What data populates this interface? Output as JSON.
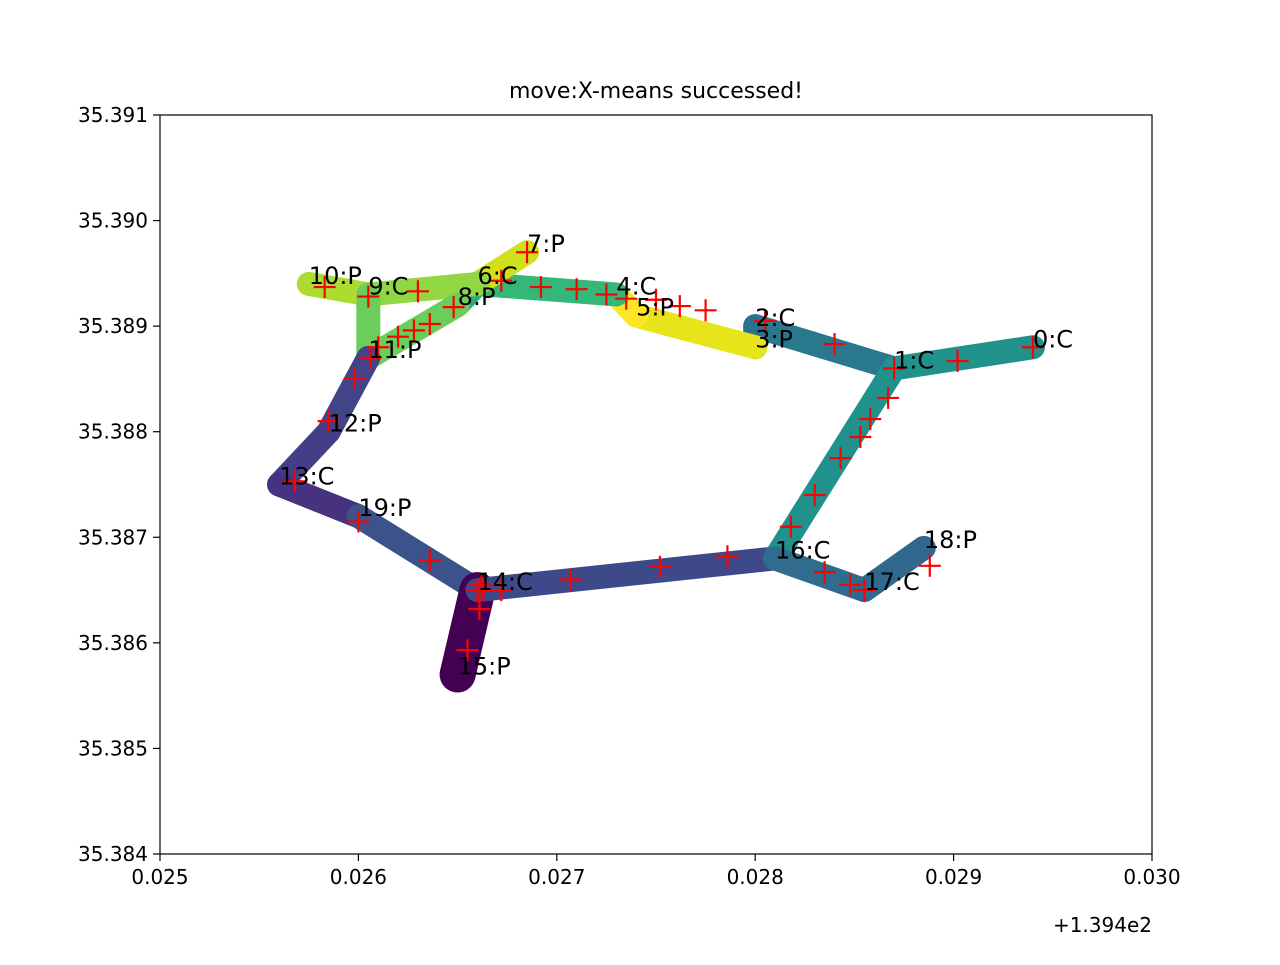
{
  "chart_data": {
    "type": "scatter",
    "title": "move:X-means successed!",
    "xlabel": "",
    "ylabel": "",
    "x_offset_label": "+1.394e2",
    "xlim": [
      0.025,
      0.03
    ],
    "ylim": [
      35.384,
      35.391
    ],
    "x_ticks": [
      0.025,
      0.026,
      0.027,
      0.028,
      0.029,
      0.03
    ],
    "x_tick_labels": [
      "0.025",
      "0.026",
      "0.027",
      "0.028",
      "0.029",
      "0.030"
    ],
    "y_ticks": [
      35.384,
      35.385,
      35.386,
      35.387,
      35.388,
      35.389,
      35.39,
      35.391
    ],
    "y_tick_labels": [
      "35.384",
      "35.385",
      "35.386",
      "35.387",
      "35.388",
      "35.389",
      "35.390",
      "35.391"
    ],
    "grid": false,
    "marker_color": "#ff0000",
    "clusters": [
      {
        "label": "0:C",
        "x": 0.0294,
        "y": 35.3888,
        "color": "#2c7e8e"
      },
      {
        "label": "1:C",
        "x": 0.0287,
        "y": 35.3886,
        "color": "#21918c"
      },
      {
        "label": "2:C",
        "x": 0.028,
        "y": 35.389,
        "color": "#2a788e"
      },
      {
        "label": "3:P",
        "x": 0.028,
        "y": 35.3888,
        "color": "#2c728e"
      },
      {
        "label": "4:C",
        "x": 0.0273,
        "y": 35.3893,
        "color": "#fde725"
      },
      {
        "label": "5:P",
        "x": 0.0274,
        "y": 35.3891,
        "color": "#e7e419"
      },
      {
        "label": "6:C",
        "x": 0.0266,
        "y": 35.3894,
        "color": "#35b779"
      },
      {
        "label": "7:P",
        "x": 0.02685,
        "y": 35.3897,
        "color": "#d0e11c"
      },
      {
        "label": "8:P",
        "x": 0.0265,
        "y": 35.3892,
        "color": "#28ae80"
      },
      {
        "label": "9:C",
        "x": 0.02605,
        "y": 35.3893,
        "color": "#90d743"
      },
      {
        "label": "10:P",
        "x": 0.02575,
        "y": 35.3894,
        "color": "#addc30"
      },
      {
        "label": "11:P",
        "x": 0.02605,
        "y": 35.3887,
        "color": "#6ccd5a"
      },
      {
        "label": "12:P",
        "x": 0.02585,
        "y": 35.388,
        "color": "#414487"
      },
      {
        "label": "13:C",
        "x": 0.0256,
        "y": 35.3875,
        "color": "#433e85"
      },
      {
        "label": "14:C",
        "x": 0.0266,
        "y": 35.3865,
        "color": "#3b528b"
      },
      {
        "label": "15:P",
        "x": 0.0265,
        "y": 35.3857,
        "color": "#440154"
      },
      {
        "label": "16:C",
        "x": 0.0281,
        "y": 35.3868,
        "color": "#3e4989"
      },
      {
        "label": "17:C",
        "x": 0.02855,
        "y": 35.3865,
        "color": "#2f6c8e"
      },
      {
        "label": "18:P",
        "x": 0.02885,
        "y": 35.3869,
        "color": "#31688e"
      },
      {
        "label": "19:P",
        "x": 0.026,
        "y": 35.3872,
        "color": "#46327e"
      }
    ],
    "points": [
      {
        "label": "0:C",
        "x": 0.0294,
        "y": 35.3888
      },
      {
        "label": "1:C",
        "x": 0.0287,
        "y": 35.3886
      },
      {
        "label": "2:C",
        "x": 0.02805,
        "y": 35.38905
      },
      {
        "label": "3:P",
        "x": 0.02775,
        "y": 35.38915
      },
      {
        "label": "4:C",
        "x": 0.02725,
        "y": 35.3893
      },
      {
        "label": "5:P",
        "x": 0.0275,
        "y": 35.38925
      },
      {
        "label": "6:C",
        "x": 0.02672,
        "y": 35.38943
      },
      {
        "label": "7:P",
        "x": 0.02685,
        "y": 35.3897
      },
      {
        "label": "8:P",
        "x": 0.02648,
        "y": 35.38918
      },
      {
        "label": "9:C",
        "x": 0.02605,
        "y": 35.38928
      },
      {
        "label": "10:P",
        "x": 0.02583,
        "y": 35.38937
      },
      {
        "label": "11:P",
        "x": 0.02606,
        "y": 35.3887
      },
      {
        "label": "12:P",
        "x": 0.02585,
        "y": 35.3881
      },
      {
        "label": "13:C",
        "x": 0.02568,
        "y": 35.38753
      },
      {
        "label": "14:C",
        "x": 0.0266,
        "y": 35.3865
      },
      {
        "label": "15:P",
        "x": 0.02655,
        "y": 35.38593
      },
      {
        "label": "16:C",
        "x": 0.02818,
        "y": 35.3871
      },
      {
        "label": "17:C",
        "x": 0.02855,
        "y": 35.3865
      },
      {
        "label": "18:P",
        "x": 0.02888,
        "y": 35.38673
      },
      {
        "label": "19:P",
        "x": 0.026,
        "y": 35.38715
      },
      {
        "x": 0.02902,
        "y": 35.38867
      },
      {
        "x": 0.0284,
        "y": 35.38883
      },
      {
        "x": 0.02762,
        "y": 35.38919
      },
      {
        "x": 0.02735,
        "y": 35.38926
      },
      {
        "x": 0.0271,
        "y": 35.38935
      },
      {
        "x": 0.02692,
        "y": 35.38937
      },
      {
        "x": 0.0263,
        "y": 35.38933
      },
      {
        "x": 0.02598,
        "y": 35.3885
      },
      {
        "x": 0.0261,
        "y": 35.3888
      },
      {
        "x": 0.0262,
        "y": 35.3889
      },
      {
        "x": 0.02628,
        "y": 35.38896
      },
      {
        "x": 0.02636,
        "y": 35.38902
      },
      {
        "x": 0.02663,
        "y": 35.3865
      },
      {
        "x": 0.02672,
        "y": 35.3865
      },
      {
        "x": 0.02661,
        "y": 35.38632
      },
      {
        "x": 0.02662,
        "y": 35.38655
      },
      {
        "x": 0.02636,
        "y": 35.38678
      },
      {
        "x": 0.02707,
        "y": 35.3866
      },
      {
        "x": 0.02752,
        "y": 35.38672
      },
      {
        "x": 0.02786,
        "y": 35.38682
      },
      {
        "x": 0.0283,
        "y": 35.3874
      },
      {
        "x": 0.02843,
        "y": 35.38775
      },
      {
        "x": 0.02853,
        "y": 35.38795
      },
      {
        "x": 0.02858,
        "y": 35.38812
      },
      {
        "x": 0.02867,
        "y": 35.38832
      },
      {
        "x": 0.02835,
        "y": 35.38667
      },
      {
        "x": 0.02848,
        "y": 35.38655
      }
    ]
  }
}
